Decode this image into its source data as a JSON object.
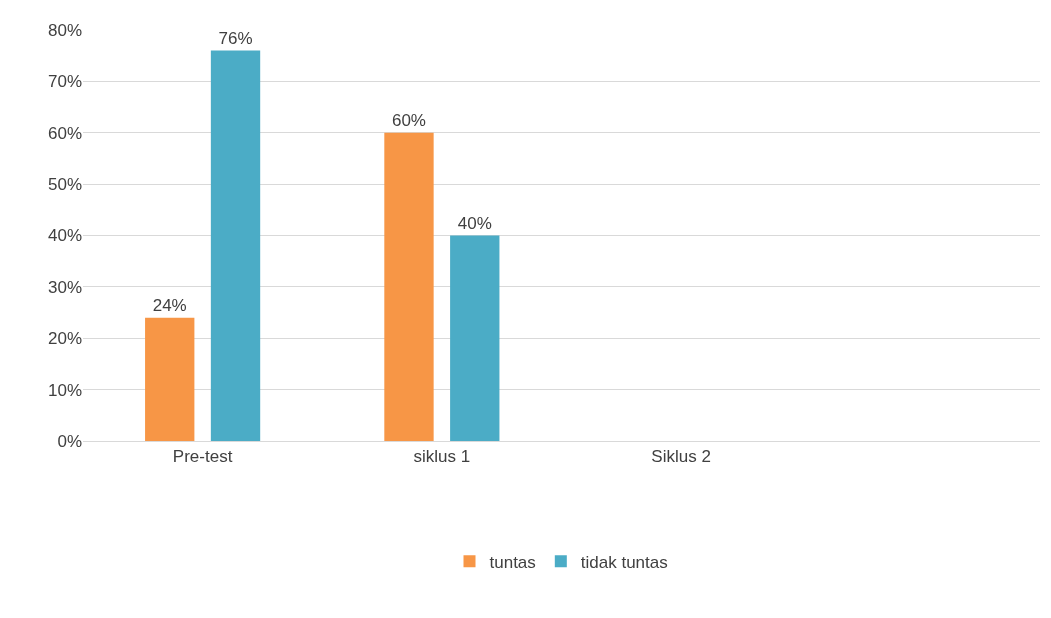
{
  "chart_data": {
    "type": "bar",
    "categories": [
      "Pre-test",
      "siklus 1",
      "Siklus 2",
      null
    ],
    "series": [
      {
        "name": "tuntas",
        "color": "#f79646",
        "values": [
          24,
          60,
          null,
          null
        ],
        "value_labels": [
          "24%",
          "60%",
          null,
          null
        ]
      },
      {
        "name": "tidak tuntas",
        "color": "#4bacc6",
        "values": [
          76,
          40,
          null,
          null
        ],
        "value_labels": [
          "76%",
          "40%",
          null,
          null
        ]
      }
    ],
    "ylim": [
      0,
      80
    ],
    "yticks": [
      {
        "value": 0,
        "label": "0%"
      },
      {
        "value": 10,
        "label": "10%"
      },
      {
        "value": 20,
        "label": "20%"
      },
      {
        "value": 30,
        "label": "30%"
      },
      {
        "value": 40,
        "label": "40%"
      },
      {
        "value": 50,
        "label": "50%"
      },
      {
        "value": 60,
        "label": "60%"
      },
      {
        "value": 70,
        "label": "70%"
      },
      {
        "value": 80,
        "label": "80%"
      }
    ],
    "grid": "y",
    "legend": "bottom"
  }
}
